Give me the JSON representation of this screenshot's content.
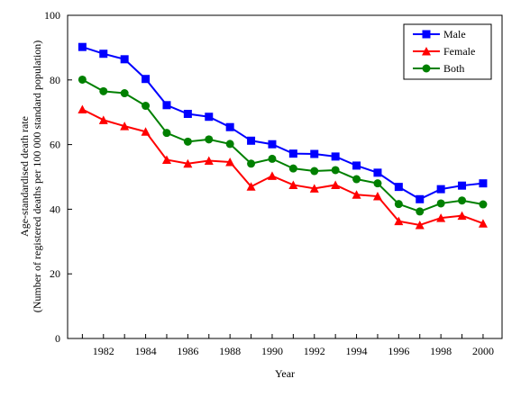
{
  "chart_data": {
    "type": "line",
    "title": "",
    "xlabel": "Year",
    "ylabel_line1": "Age-standardised death rate",
    "ylabel_line2": "(Number of registered deaths per 100 000 standard population)",
    "xlim": [
      1980.3,
      2000.9
    ],
    "ylim": [
      0,
      100
    ],
    "yticks": [
      0,
      20,
      40,
      60,
      80,
      100
    ],
    "xticks": [
      1982,
      1984,
      1986,
      1988,
      1990,
      1992,
      1994,
      1996,
      1998,
      2000
    ],
    "grid": false,
    "legend_position": "top-right",
    "x": [
      1981,
      1982,
      1983,
      1984,
      1985,
      1986,
      1987,
      1988,
      1989,
      1990,
      1991,
      1992,
      1993,
      1994,
      1995,
      1996,
      1997,
      1998,
      1999,
      2000
    ],
    "series": [
      {
        "name": "Male",
        "color": "#0000ff",
        "marker": "square",
        "values": [
          90.2,
          88.1,
          86.4,
          80.3,
          72.2,
          69.5,
          68.6,
          65.4,
          61.2,
          60.1,
          57.2,
          57.1,
          56.3,
          53.5,
          51.3,
          46.9,
          43.1,
          46.2,
          47.3,
          48.0
        ]
      },
      {
        "name": "Female",
        "color": "#ff0000",
        "marker": "triangle",
        "values": [
          70.9,
          67.6,
          65.7,
          64.0,
          55.3,
          54.1,
          55.0,
          54.6,
          47.0,
          50.3,
          47.5,
          46.4,
          47.5,
          44.5,
          44.0,
          36.3,
          35.1,
          37.3,
          38.0,
          35.6
        ]
      },
      {
        "name": "Both",
        "color": "#008000",
        "marker": "circle",
        "values": [
          80.1,
          76.5,
          75.9,
          72.0,
          63.6,
          60.9,
          61.6,
          60.2,
          54.1,
          55.6,
          52.6,
          51.8,
          52.1,
          49.3,
          48.0,
          41.6,
          39.3,
          41.8,
          42.7,
          41.5
        ]
      }
    ]
  }
}
